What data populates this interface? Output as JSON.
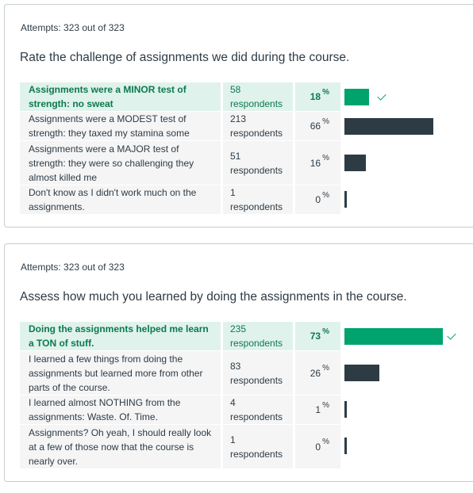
{
  "quizzes": [
    {
      "attempts": "Attempts: 323 out of 323",
      "question": "Rate the challenge of assignments we did during the course.",
      "answers": [
        {
          "text": "Assignments were a MINOR test of strength: no sweat",
          "respondents": "58 respondents",
          "percent": "18",
          "pct_value": 18,
          "correct": true
        },
        {
          "text": "Assignments were a MODEST test of strength: they taxed my stamina some",
          "respondents": "213 respondents",
          "percent": "66",
          "pct_value": 66,
          "correct": false
        },
        {
          "text": "Assignments were a MAJOR test of strength: they were so challenging they almost killed me",
          "respondents": "51 respondents",
          "percent": "16",
          "pct_value": 16,
          "correct": false
        },
        {
          "text": "Don't know as I didn't work much on the assignments.",
          "respondents": "1 respondents",
          "percent": "0",
          "pct_value": 0,
          "correct": false
        }
      ]
    },
    {
      "attempts": "Attempts: 323 out of 323",
      "question": "Assess how much you learned by doing the assignments in the course.",
      "answers": [
        {
          "text": "Doing the assignments helped me learn a TON of stuff.",
          "respondents": "235 respondents",
          "percent": "73",
          "pct_value": 73,
          "correct": true
        },
        {
          "text": "I learned a few things from doing the assignments but learned more from other parts of the course.",
          "respondents": "83 respondents",
          "percent": "26",
          "pct_value": 26,
          "correct": false
        },
        {
          "text": "I learned almost NOTHING from the assignments: Waste. Of. Time.",
          "respondents": "4 respondents",
          "percent": "1",
          "pct_value": 1,
          "correct": false
        },
        {
          "text": "Assignments? Oh yeah, I should really look at a few of those now that the course is nearly over.",
          "respondents": "1 respondents",
          "percent": "0",
          "pct_value": 0,
          "correct": false
        }
      ]
    }
  ],
  "percent_symbol": "%",
  "colors": {
    "correct": "#00a36e",
    "bar": "#2d3b45",
    "correct_bg": "#e0f2ec",
    "row_bg": "#f5f5f5"
  }
}
